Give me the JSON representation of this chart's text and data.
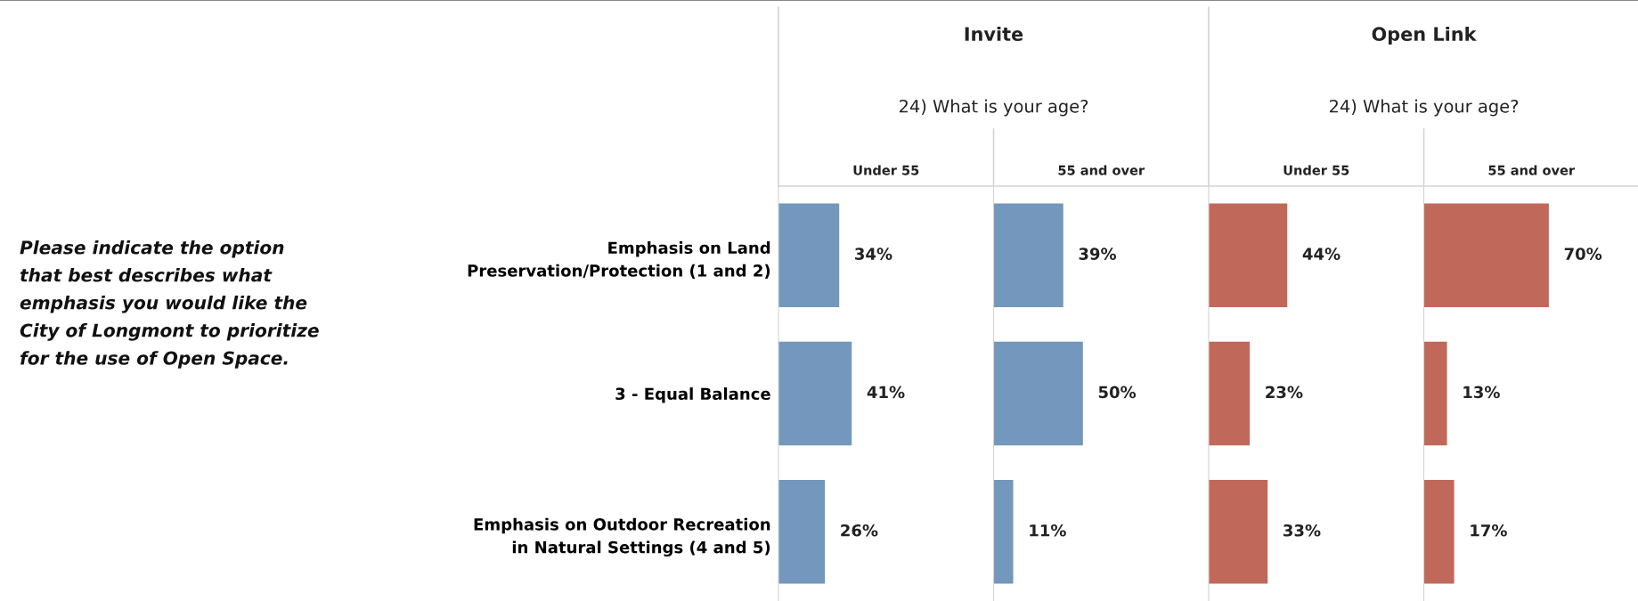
{
  "chart_data": [
    {
      "type": "bar",
      "orientation": "horizontal",
      "title": "Under 55",
      "annotations": [
        "Invite",
        "24) What is your age?"
      ],
      "ylabel": "Please indicate the option that best describes what emphasis you would like the City of Longmont to prioritize for the use of Open Space.",
      "categories": [
        "Emphasis on Land\nPreservation/Protection (1 and 2)",
        "3 - Equal Balance",
        "Emphasis on Outdoor Recreation\nin Natural Settings (4 and 5)"
      ],
      "values": [
        34,
        41,
        26
      ],
      "color": "#7397bd",
      "data_labels": true,
      "value_labels": [
        "34%",
        "41%",
        "26%"
      ],
      "tick_labels": "y"
    },
    {
      "type": "bar",
      "orientation": "horizontal",
      "title": "55 and over",
      "values": [
        39,
        50,
        11
      ],
      "color": "#7397bd",
      "data_labels": true,
      "value_labels": [
        "39%",
        "50%",
        "11%"
      ],
      "tick_labels": false
    },
    {
      "type": "bar",
      "orientation": "horizontal",
      "title": "Under 55",
      "annotations": [
        "Open Link",
        "24) What is your age?"
      ],
      "values": [
        44,
        23,
        33
      ],
      "color": "#c0695a",
      "data_labels": true,
      "value_labels": [
        "44%",
        "23%",
        "33%"
      ],
      "tick_labels": false
    },
    {
      "type": "bar",
      "orientation": "horizontal",
      "title": "55 and over",
      "values": [
        70,
        13,
        17
      ],
      "color": "#c0695a",
      "data_labels": true,
      "value_labels": [
        "70%",
        "13%",
        "17%"
      ],
      "tick_labels": false
    }
  ]
}
